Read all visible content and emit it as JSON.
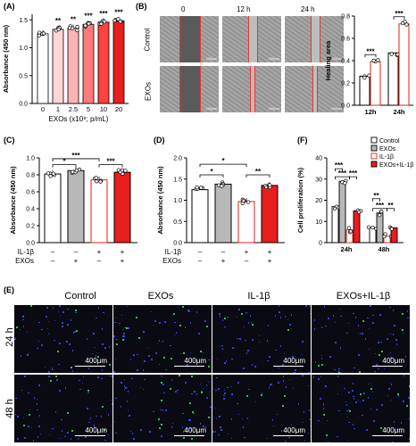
{
  "panel_letters": {
    "a": "(A)",
    "b": "(B)",
    "c": "(C)",
    "d": "(D)",
    "e": "(E)",
    "f": "(F)"
  },
  "colors": {
    "white_bar": "#ffffff",
    "grey_bar": "#b8b8b8",
    "red": "#e81e1e",
    "light_red": "#ffffff",
    "dark_bg": "#0a0a12"
  },
  "panel_b": {
    "col_headers": [
      "0",
      "12 h",
      "24 h"
    ],
    "row_headers": [
      "Control",
      "EXOs"
    ],
    "scale_label": "100μm"
  },
  "panel_e": {
    "col_headers": [
      "Control",
      "EXOs",
      "IL-1β",
      "EXOs+IL-1β"
    ],
    "row_headers": [
      "24 h",
      "48 h"
    ],
    "scale_label": "400μm"
  },
  "chart_data": [
    {
      "id": "A",
      "type": "bar",
      "xlabel": "EXOs (x10⁸; p/mL)",
      "ylabel": "Absorbance (450 nm)",
      "categories": [
        "0",
        "1",
        "2.5",
        "5",
        "10",
        "20"
      ],
      "values": [
        1.25,
        1.33,
        1.35,
        1.42,
        1.46,
        1.48
      ],
      "ylim": [
        0.0,
        1.6
      ],
      "yticks": [
        "0.0",
        "0.5",
        "1.0",
        "1.5"
      ],
      "significance": [
        "",
        "**",
        "**",
        "***",
        "***",
        "***"
      ]
    },
    {
      "id": "B",
      "type": "bar",
      "ylabel": "Healing area",
      "categories": [
        "12h",
        "24h"
      ],
      "series": [
        {
          "values": [
            0.26,
            0.47
          ]
        },
        {
          "values": [
            0.39,
            0.73
          ]
        }
      ],
      "ylim": [
        0.0,
        0.8
      ],
      "yticks": [
        "0.0",
        "0.2",
        "0.4",
        "0.6",
        "0.8"
      ],
      "significance": [
        "***",
        "***"
      ]
    },
    {
      "id": "C",
      "type": "bar",
      "ylabel": "Absorbance (450 nm)",
      "values": [
        0.81,
        0.85,
        0.74,
        0.83
      ],
      "ylim": [
        0.0,
        1.0
      ],
      "yticks": [
        "0.0",
        "0.2",
        "0.4",
        "0.6",
        "0.8",
        "1.0"
      ],
      "row_labels": [
        "IL-1β",
        "EXOs"
      ],
      "signs": [
        [
          "–",
          "–",
          "+",
          "+"
        ],
        [
          "–",
          "+",
          "–",
          "+"
        ]
      ],
      "brackets": [
        {
          "label": "*"
        },
        {
          "label": "***"
        },
        {
          "label": "***"
        }
      ]
    },
    {
      "id": "D",
      "type": "bar",
      "ylabel": "Absorbance (450 nm)",
      "values": [
        1.25,
        1.38,
        0.97,
        1.35
      ],
      "ylim": [
        0.0,
        2.0
      ],
      "yticks": [
        "0.0",
        "0.5",
        "1.0",
        "1.5",
        "2.0"
      ],
      "row_labels": [
        "IL-1β",
        "EXOs"
      ],
      "signs": [
        [
          "–",
          "–",
          "+",
          "+"
        ],
        [
          "–",
          "+",
          "–",
          "+"
        ]
      ],
      "brackets": [
        {
          "label": "*"
        },
        {
          "label": "*"
        },
        {
          "label": "**"
        }
      ]
    },
    {
      "id": "F",
      "type": "bar",
      "ylabel": "Cell proliferation (%)",
      "categories": [
        "24h",
        "48h"
      ],
      "series": [
        {
          "name": "Control",
          "values": [
            17,
            7
          ]
        },
        {
          "name": "EXOs",
          "values": [
            29,
            14
          ]
        },
        {
          "name": "IL-1β",
          "values": [
            6,
            3
          ]
        },
        {
          "name": "EXOs+IL-1β",
          "values": [
            15,
            7
          ]
        }
      ],
      "ylim": [
        0,
        40
      ],
      "yticks": [
        "0",
        "10",
        "20",
        "30",
        "40"
      ],
      "significance": [
        "***",
        "***",
        "***",
        "**",
        "***",
        "**"
      ],
      "legend": "top-right"
    }
  ]
}
